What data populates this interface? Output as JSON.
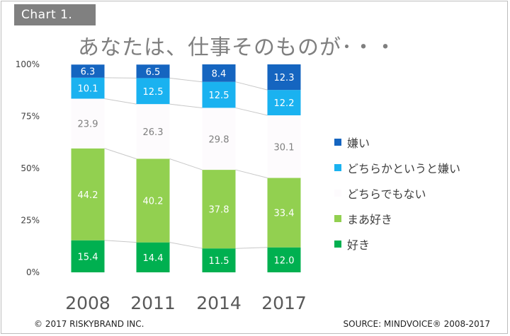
{
  "header": {
    "chart_label": "Chart 1.",
    "title": "あなたは、仕事そのものが･・・"
  },
  "footer": {
    "copyright": "© 2017 RISKYBRAND INC.",
    "source": "SOURCE: MINDVOICE® 2008-2017"
  },
  "colors": {
    "dislike": "#1565c0",
    "somewhat_dislike": "#1ab2f0",
    "neutral": "#fdfbfd",
    "somewhat_like": "#92d050",
    "like": "#00b050",
    "connector": "#c8c8c8",
    "axis_text": "#404040",
    "title_text": "#7f7f7f"
  },
  "chart_data": {
    "type": "bar",
    "stacked": true,
    "title": "あなたは、仕事そのものが･・・",
    "categories": [
      "2008",
      "2011",
      "2014",
      "2017"
    ],
    "ylim": [
      0,
      100
    ],
    "yticks": [
      "0%",
      "25%",
      "50%",
      "75%",
      "100%"
    ],
    "legend_position": "right",
    "series": [
      {
        "name": "好き",
        "values": [
          15.4,
          14.4,
          11.5,
          12.0
        ],
        "label_color": "#ffffff"
      },
      {
        "name": "まあ好き",
        "values": [
          44.2,
          40.2,
          37.8,
          33.4
        ],
        "label_color": "#ffffff"
      },
      {
        "name": "どちらでもない",
        "values": [
          23.9,
          26.3,
          29.8,
          30.1
        ],
        "label_color": "#7f7f7f"
      },
      {
        "name": "どちらかというと嫌い",
        "values": [
          10.1,
          12.5,
          12.5,
          12.2
        ],
        "label_color": "#ffffff"
      },
      {
        "name": "嫌い",
        "values": [
          6.3,
          6.5,
          8.4,
          12.3
        ],
        "label_color": "#ffffff"
      }
    ],
    "legend_order": [
      "嫌い",
      "どちらかというと嫌い",
      "どちらでもない",
      "まあ好き",
      "好き"
    ]
  }
}
